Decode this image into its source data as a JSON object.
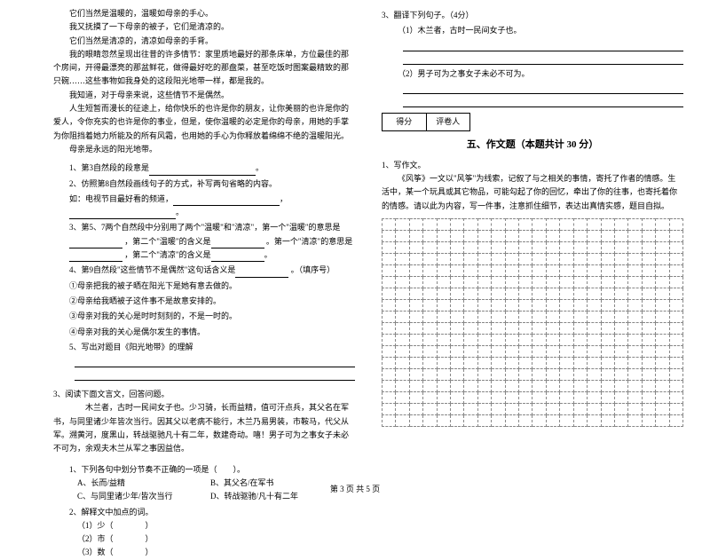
{
  "left": {
    "passage": [
      "它们当然是温暖的，温暖如母亲的手心。",
      "我又抚摸了一下母亲的被子，它们是清凉的。",
      "它们当然是清凉的，清凉如母亲的手背。",
      "我的眼睛忽然呈现出往昔的许多情节：家里质地最好的那条床单，方位最佳的那个房间，开得最漂亮的那盆鲜花，做得最好吃的那盘菜，甚至吃饭时图案最精致的那只碗……这些事物如我身处的这段阳光地带一样，都是我的。",
      "我知道，对于母亲来说，这些情节不是偶然。",
      "人生短暂而漫长的征途上，给你快乐的也许是你的朋友，让你美丽的也许是你的爱人，令你充实的也许是你的事业，但是，使你温暖的必定是你的母亲，用她的手掌为你阻挡着她力所能及的所有风霜，也用她的手心为你释放着绵绵不绝的温暖阳光。",
      "母亲是永远的阳光地带。"
    ],
    "q1_label": "1、第3自然段的段意是",
    "q2_label": "2、仿照第8自然段画线句子的方式，补写两句省略的内容。",
    "q2_sub": "如：电视节目最好看的频道，",
    "q3_label": "3、第5、7两个自然段中分别用了两个\"温暖\"和\"清凉\"，第一个\"温暖\"的意思是",
    "q3_b": "，第二个\"温暖\"的含义是",
    "q3_c": "。第一个\"清凉\"的意思是",
    "q3_d": "，第二个\"清凉\"的含义是",
    "q4_label": "4、第9自然段\"这些情节不是偶然\"这句话含义是",
    "q4_suffix": "。（填序号）",
    "q4_opts": [
      "①母亲把我的被子晒在阳光下是她有意去做的。",
      "②母亲给我晒被子这件事不是故意安排的。",
      "③母亲对我的关心是时时刻刻的，不是一时的。",
      "④母亲对我的关心是偶尔发生的事情。"
    ],
    "q5_label": "5、写出对题目《阳光地带》的理解",
    "reading3_label": "3、阅读下面文言文，回答问题。",
    "wenyan": "木兰者，古时一民间女子也。少习骑，长而益精，值可汗点兵，其父名在军书，与同里诸少年皆次当行。因其父以老病不能行，木兰乃易男装，市鞍马，代父从军。溯黄河，度黑山，转战驱驰凡十有二年，数建奇动。嘻！男子可为之事女子未必不可为，余观夫木兰从军之事因益信。",
    "wy_q1": "1、下列各句中划分节奏不正确的一项是（　　）。",
    "wy_opts": [
      [
        "A、长而/益精",
        "B、其父名/在军书"
      ],
      [
        "C、与同里诸少年/皆次当行",
        "D、转战驱驰/凡十有二年"
      ]
    ],
    "wy_q2": "2、解释文中加点的词。",
    "wy_q2_items": [
      "（1）少（　　　　）",
      "（2）市（　　　　）",
      "（3）数（　　　　）"
    ]
  },
  "right": {
    "q3_label": "3、翻译下列句子。（4分）",
    "q3_1": "（1）木兰者，古时一民间女子也。",
    "q3_2": "（2）男子可为之事女子未必不可为。",
    "score_labels": [
      "得分",
      "评卷人"
    ],
    "section_title": "五、作文题（本题共计 30 分）",
    "comp_label": "1、写作文。",
    "comp_body": "《风筝》一文以\"风筝\"为线索，记叙了与之相关的事情，寄托了作者的情感。生活中，某一个玩具或其它物品，可能勾起了你的回忆，牵出了你的往事，也寄托着你的情感。请以此为内容，写一件事，注意抓住细节，表达出真情实感，题目自拟。",
    "grid": {
      "rows": 18,
      "cols": 22
    }
  },
  "footer": "第 3 页 共 5 页"
}
